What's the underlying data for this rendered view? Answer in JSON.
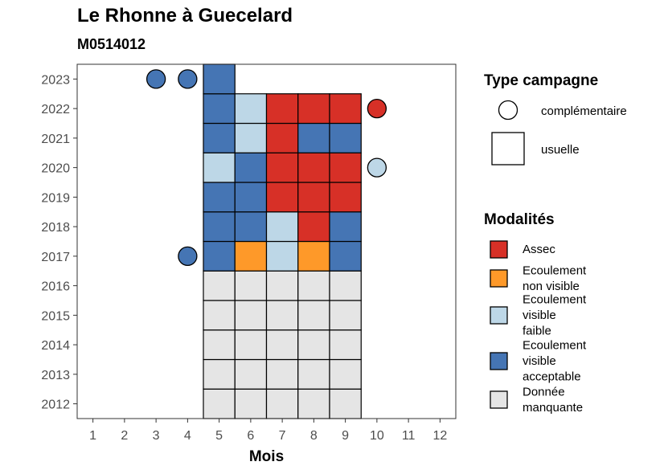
{
  "header": {
    "title": "Le Rhonne à Guecelard",
    "subtitle": "M0514012"
  },
  "colors": {
    "Assec": "#d73027",
    "Ecoulement non visible": "#fe9929",
    "Ecoulement visible faible": "#bdd7e7",
    "Ecoulement visible acceptable": "#4575b4",
    "Donnée manquante": "#e5e5e5"
  },
  "chart_data": {
    "type": "heatmap",
    "xlabel": "Mois",
    "x_ticks": [
      "1",
      "2",
      "3",
      "4",
      "5",
      "6",
      "7",
      "8",
      "9",
      "10",
      "11",
      "12"
    ],
    "y_ticks": [
      "2012",
      "2013",
      "2014",
      "2015",
      "2016",
      "2017",
      "2018",
      "2019",
      "2020",
      "2021",
      "2022",
      "2023"
    ],
    "xlim": [
      0.5,
      12.5
    ],
    "ylim": [
      2011.5,
      2023.5
    ],
    "grid": false,
    "legend_placement": "right",
    "usuelle": [
      {
        "year": 2012,
        "month": 5,
        "modalite": "Donnée manquante"
      },
      {
        "year": 2012,
        "month": 6,
        "modalite": "Donnée manquante"
      },
      {
        "year": 2012,
        "month": 7,
        "modalite": "Donnée manquante"
      },
      {
        "year": 2012,
        "month": 8,
        "modalite": "Donnée manquante"
      },
      {
        "year": 2012,
        "month": 9,
        "modalite": "Donnée manquante"
      },
      {
        "year": 2013,
        "month": 5,
        "modalite": "Donnée manquante"
      },
      {
        "year": 2013,
        "month": 6,
        "modalite": "Donnée manquante"
      },
      {
        "year": 2013,
        "month": 7,
        "modalite": "Donnée manquante"
      },
      {
        "year": 2013,
        "month": 8,
        "modalite": "Donnée manquante"
      },
      {
        "year": 2013,
        "month": 9,
        "modalite": "Donnée manquante"
      },
      {
        "year": 2014,
        "month": 5,
        "modalite": "Donnée manquante"
      },
      {
        "year": 2014,
        "month": 6,
        "modalite": "Donnée manquante"
      },
      {
        "year": 2014,
        "month": 7,
        "modalite": "Donnée manquante"
      },
      {
        "year": 2014,
        "month": 8,
        "modalite": "Donnée manquante"
      },
      {
        "year": 2014,
        "month": 9,
        "modalite": "Donnée manquante"
      },
      {
        "year": 2015,
        "month": 5,
        "modalite": "Donnée manquante"
      },
      {
        "year": 2015,
        "month": 6,
        "modalite": "Donnée manquante"
      },
      {
        "year": 2015,
        "month": 7,
        "modalite": "Donnée manquante"
      },
      {
        "year": 2015,
        "month": 8,
        "modalite": "Donnée manquante"
      },
      {
        "year": 2015,
        "month": 9,
        "modalite": "Donnée manquante"
      },
      {
        "year": 2016,
        "month": 5,
        "modalite": "Donnée manquante"
      },
      {
        "year": 2016,
        "month": 6,
        "modalite": "Donnée manquante"
      },
      {
        "year": 2016,
        "month": 7,
        "modalite": "Donnée manquante"
      },
      {
        "year": 2016,
        "month": 8,
        "modalite": "Donnée manquante"
      },
      {
        "year": 2016,
        "month": 9,
        "modalite": "Donnée manquante"
      },
      {
        "year": 2017,
        "month": 5,
        "modalite": "Ecoulement visible acceptable"
      },
      {
        "year": 2017,
        "month": 6,
        "modalite": "Ecoulement non visible"
      },
      {
        "year": 2017,
        "month": 7,
        "modalite": "Ecoulement visible faible"
      },
      {
        "year": 2017,
        "month": 8,
        "modalite": "Ecoulement non visible"
      },
      {
        "year": 2017,
        "month": 9,
        "modalite": "Ecoulement visible acceptable"
      },
      {
        "year": 2018,
        "month": 5,
        "modalite": "Ecoulement visible acceptable"
      },
      {
        "year": 2018,
        "month": 6,
        "modalite": "Ecoulement visible acceptable"
      },
      {
        "year": 2018,
        "month": 7,
        "modalite": "Ecoulement visible faible"
      },
      {
        "year": 2018,
        "month": 8,
        "modalite": "Assec"
      },
      {
        "year": 2018,
        "month": 9,
        "modalite": "Ecoulement visible acceptable"
      },
      {
        "year": 2019,
        "month": 5,
        "modalite": "Ecoulement visible acceptable"
      },
      {
        "year": 2019,
        "month": 6,
        "modalite": "Ecoulement visible acceptable"
      },
      {
        "year": 2019,
        "month": 7,
        "modalite": "Assec"
      },
      {
        "year": 2019,
        "month": 8,
        "modalite": "Assec"
      },
      {
        "year": 2019,
        "month": 9,
        "modalite": "Assec"
      },
      {
        "year": 2020,
        "month": 5,
        "modalite": "Ecoulement visible faible"
      },
      {
        "year": 2020,
        "month": 6,
        "modalite": "Ecoulement visible acceptable"
      },
      {
        "year": 2020,
        "month": 7,
        "modalite": "Assec"
      },
      {
        "year": 2020,
        "month": 8,
        "modalite": "Assec"
      },
      {
        "year": 2020,
        "month": 9,
        "modalite": "Assec"
      },
      {
        "year": 2021,
        "month": 5,
        "modalite": "Ecoulement visible acceptable"
      },
      {
        "year": 2021,
        "month": 6,
        "modalite": "Ecoulement visible faible"
      },
      {
        "year": 2021,
        "month": 7,
        "modalite": "Assec"
      },
      {
        "year": 2021,
        "month": 8,
        "modalite": "Ecoulement visible acceptable"
      },
      {
        "year": 2021,
        "month": 9,
        "modalite": "Ecoulement visible acceptable"
      },
      {
        "year": 2022,
        "month": 5,
        "modalite": "Ecoulement visible acceptable"
      },
      {
        "year": 2022,
        "month": 6,
        "modalite": "Ecoulement visible faible"
      },
      {
        "year": 2022,
        "month": 7,
        "modalite": "Assec"
      },
      {
        "year": 2022,
        "month": 8,
        "modalite": "Assec"
      },
      {
        "year": 2022,
        "month": 9,
        "modalite": "Assec"
      },
      {
        "year": 2023,
        "month": 5,
        "modalite": "Ecoulement visible acceptable"
      }
    ],
    "complementaire": [
      {
        "year": 2023,
        "month": 3,
        "modalite": "Ecoulement visible acceptable"
      },
      {
        "year": 2023,
        "month": 4,
        "modalite": "Ecoulement visible acceptable"
      },
      {
        "year": 2022,
        "month": 10,
        "modalite": "Assec"
      },
      {
        "year": 2020,
        "month": 10,
        "modalite": "Ecoulement visible faible"
      },
      {
        "year": 2017,
        "month": 4,
        "modalite": "Ecoulement visible acceptable"
      }
    ],
    "legend_type": {
      "title": "Type campagne",
      "items": [
        "complémentaire",
        "usuelle"
      ]
    },
    "legend_modalites": {
      "title": "Modalités",
      "items": [
        {
          "key": "Assec",
          "lines": [
            "Assec"
          ]
        },
        {
          "key": "Ecoulement non visible",
          "lines": [
            "Ecoulement",
            "non visible"
          ]
        },
        {
          "key": "Ecoulement visible faible",
          "lines": [
            "Ecoulement",
            "visible",
            "faible"
          ]
        },
        {
          "key": "Ecoulement visible acceptable",
          "lines": [
            "Ecoulement",
            "visible",
            "acceptable"
          ]
        },
        {
          "key": "Donnée manquante",
          "lines": [
            "Donnée",
            "manquante"
          ]
        }
      ]
    }
  }
}
